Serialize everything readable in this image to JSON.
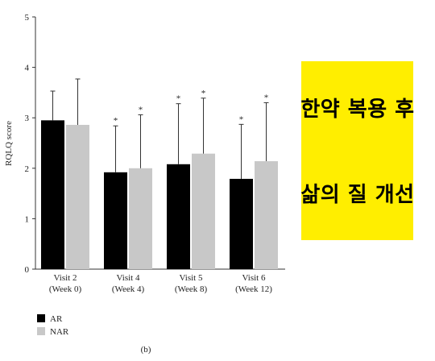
{
  "chart_data": {
    "type": "bar",
    "ylabel": "RQLQ score",
    "ylim": [
      0,
      5
    ],
    "yticks": [
      "0",
      "1",
      "2",
      "3",
      "4",
      "5"
    ],
    "categories": [
      {
        "line1": "Visit 2",
        "line2": "(Week 0)"
      },
      {
        "line1": "Visit 4",
        "line2": "(Week 4)"
      },
      {
        "line1": "Visit 5",
        "line2": "(Week 8)"
      },
      {
        "line1": "Visit 6",
        "line2": "(Week 12)"
      }
    ],
    "series": [
      {
        "name": "AR",
        "color": "#000000",
        "values": [
          2.95,
          1.92,
          2.08,
          1.79
        ],
        "error": [
          0.58,
          0.92,
          1.2,
          1.08
        ],
        "significant": [
          false,
          true,
          true,
          true
        ]
      },
      {
        "name": "NAR",
        "color": "#c8c8c8",
        "values": [
          2.86,
          2.0,
          2.29,
          2.14
        ],
        "error": [
          0.91,
          1.06,
          1.1,
          1.16
        ],
        "significant": [
          false,
          true,
          true,
          true
        ]
      }
    ],
    "significance_marker": "*",
    "legend_position": "bottom-left",
    "panel_label": "(b)"
  },
  "overlay": {
    "line1": "한약 복용 후",
    "line2": "삶의 질 개선",
    "background": "#ffee00"
  }
}
